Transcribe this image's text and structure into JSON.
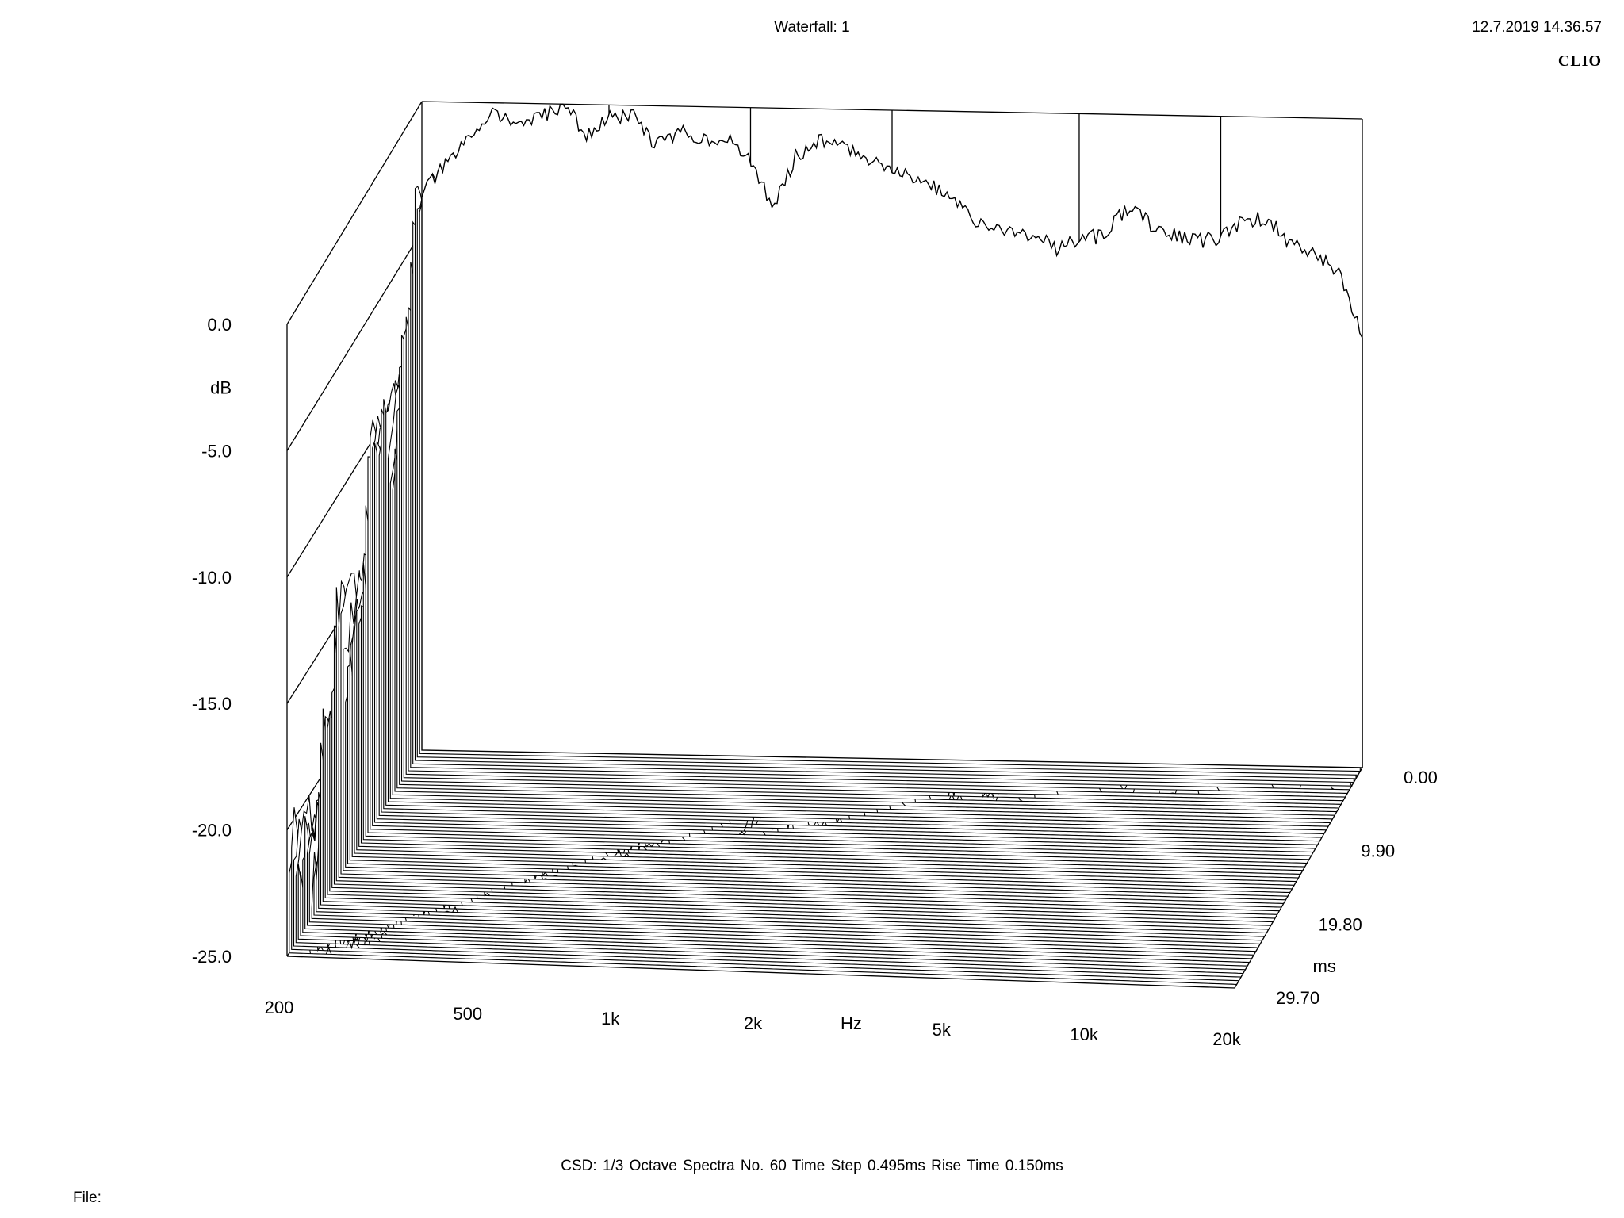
{
  "header": {
    "title": "Waterfall: 1",
    "timestamp": "12.7.2019 14.36.57",
    "brand": "CLIO"
  },
  "footer": {
    "info": "CSD:   1/3 Octave   Spectra No. 60   Time Step 0.495ms   Rise Time 0.150ms",
    "file_label": "File:"
  },
  "chart_data": {
    "type": "waterfall",
    "title": "Waterfall: 1",
    "xlabel": "Hz",
    "ylabel": "dB",
    "zlabel": "ms",
    "x_scale": "log",
    "xlim": [
      200,
      20000
    ],
    "ylim": [
      -25,
      0
    ],
    "zlim": [
      0,
      29.7
    ],
    "x_ticks": [
      {
        "value": 200,
        "label": "200"
      },
      {
        "value": 500,
        "label": "500"
      },
      {
        "value": 1000,
        "label": "1k"
      },
      {
        "value": 2000,
        "label": "2k"
      },
      {
        "value": 5000,
        "label": "5k"
      },
      {
        "value": 10000,
        "label": "10k"
      },
      {
        "value": 20000,
        "label": "20k"
      }
    ],
    "y_ticks": [
      {
        "value": 0,
        "label": "0.0"
      },
      {
        "value": -5,
        "label": "-5.0"
      },
      {
        "value": -10,
        "label": "-10.0"
      },
      {
        "value": -15,
        "label": "-15.0"
      },
      {
        "value": -20,
        "label": "-20.0"
      },
      {
        "value": -25,
        "label": "-25.0"
      }
    ],
    "z_ticks": [
      {
        "value": 0,
        "label": "0.00"
      },
      {
        "value": 9.9,
        "label": "9.90"
      },
      {
        "value": 19.8,
        "label": "19.80"
      },
      {
        "value": 29.7,
        "label": "29.70"
      }
    ],
    "method": "1/3 Octave",
    "spectra_count": 60,
    "time_step_ms": 0.495,
    "rise_time_ms": 0.15,
    "first_spectrum": {
      "freq": [
        200,
        250,
        280,
        315,
        355,
        400,
        450,
        500,
        560,
        630,
        710,
        800,
        900,
        1000,
        1120,
        1250,
        1400,
        1600,
        1800,
        2000,
        2240,
        2500,
        2800,
        3150,
        3550,
        4000,
        4500,
        5000,
        5600,
        6300,
        7100,
        8000,
        9000,
        10000,
        11200,
        12500,
        14000,
        16000,
        18000,
        20000
      ],
      "db": [
        -3.5,
        -1.5,
        -0.3,
        -0.8,
        -0.6,
        0.0,
        -1.2,
        -0.5,
        -0.4,
        -1.5,
        -1.0,
        -1.2,
        -1.3,
        -2.1,
        -3.8,
        -1.8,
        -1.2,
        -1.5,
        -1.9,
        -2.2,
        -2.6,
        -3.0,
        -3.7,
        -4.5,
        -4.5,
        -4.8,
        -5.2,
        -4.8,
        -4.7,
        -3.6,
        -4.2,
        -4.6,
        -4.8,
        -4.7,
        -4.0,
        -3.9,
        -4.8,
        -5.2,
        -6.0,
        -8.5
      ]
    }
  }
}
